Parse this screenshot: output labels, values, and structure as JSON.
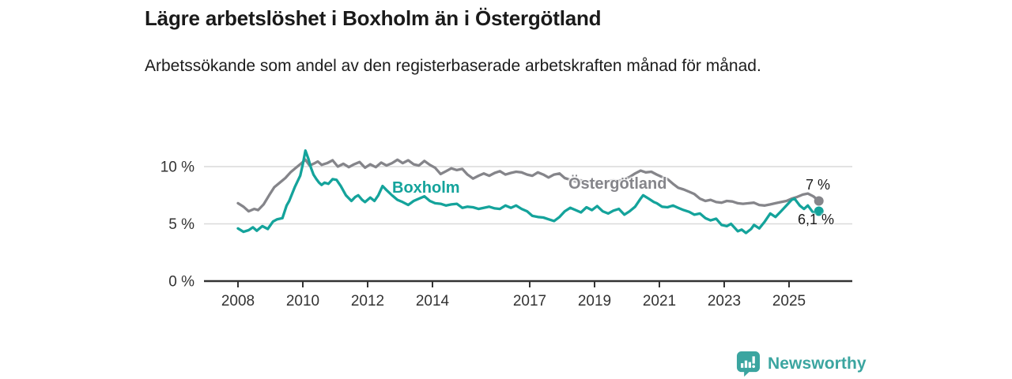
{
  "header": {
    "title": "Lägre arbetslöshet i Boxholm än i Östergötland",
    "subtitle": "Arbetssökande som andel av den registerbaserade arbetskraften månad för månad."
  },
  "footer": {
    "brand": "Newsworthy"
  },
  "colors": {
    "boxholm": "#14A39B",
    "ostergotland": "#85858A",
    "logo_teal": "#3BA5A0",
    "axis": "#333333",
    "grid": "#DADADA",
    "label_text": "#1A1A1A"
  },
  "chart_data": {
    "type": "line",
    "title": "Lägre arbetslöshet i Boxholm än i Östergötland",
    "subtitle": "Arbetssökande som andel av den registerbaserade arbetskraften månad för månad.",
    "unit": "%",
    "xlabel": "",
    "ylabel": "",
    "x_range": [
      2008,
      2025.92
    ],
    "ylim": [
      0,
      11.8
    ],
    "grid": "horizontal-only",
    "legend_position": "inline-labels",
    "x_ticks": [
      2008,
      2010,
      2012,
      2014,
      2017,
      2019,
      2021,
      2023,
      2025
    ],
    "y_ticks": [
      {
        "value": 0,
        "label": "0 %"
      },
      {
        "value": 5,
        "label": "5 %"
      },
      {
        "value": 10,
        "label": "10 %"
      }
    ],
    "series": [
      {
        "name": "Östergötland",
        "color": "#85858A",
        "end_label": "7 %",
        "end_value": 7.0,
        "points": [
          [
            2008.0,
            6.8
          ],
          [
            2008.17,
            6.5
          ],
          [
            2008.33,
            6.1
          ],
          [
            2008.5,
            6.3
          ],
          [
            2008.62,
            6.2
          ],
          [
            2008.79,
            6.7
          ],
          [
            2008.96,
            7.5
          ],
          [
            2009.12,
            8.2
          ],
          [
            2009.29,
            8.6
          ],
          [
            2009.46,
            9.0
          ],
          [
            2009.62,
            9.5
          ],
          [
            2009.79,
            9.9
          ],
          [
            2009.96,
            10.3
          ],
          [
            2010.08,
            10.6
          ],
          [
            2010.21,
            10.1
          ],
          [
            2010.37,
            10.3
          ],
          [
            2010.46,
            10.45
          ],
          [
            2010.58,
            10.15
          ],
          [
            2010.75,
            10.3
          ],
          [
            2010.92,
            10.55
          ],
          [
            2011.08,
            10.0
          ],
          [
            2011.25,
            10.25
          ],
          [
            2011.42,
            9.95
          ],
          [
            2011.58,
            10.2
          ],
          [
            2011.75,
            10.4
          ],
          [
            2011.92,
            9.9
          ],
          [
            2012.08,
            10.2
          ],
          [
            2012.25,
            9.95
          ],
          [
            2012.42,
            10.35
          ],
          [
            2012.58,
            10.1
          ],
          [
            2012.75,
            10.3
          ],
          [
            2012.92,
            10.6
          ],
          [
            2013.08,
            10.3
          ],
          [
            2013.25,
            10.55
          ],
          [
            2013.42,
            10.2
          ],
          [
            2013.58,
            10.1
          ],
          [
            2013.75,
            10.5
          ],
          [
            2013.92,
            10.15
          ],
          [
            2014.08,
            9.9
          ],
          [
            2014.25,
            9.35
          ],
          [
            2014.42,
            9.6
          ],
          [
            2014.58,
            9.85
          ],
          [
            2014.75,
            9.7
          ],
          [
            2014.92,
            9.8
          ],
          [
            2015.08,
            9.3
          ],
          [
            2015.25,
            8.95
          ],
          [
            2015.42,
            9.2
          ],
          [
            2015.58,
            9.4
          ],
          [
            2015.75,
            9.2
          ],
          [
            2015.92,
            9.45
          ],
          [
            2016.08,
            9.6
          ],
          [
            2016.25,
            9.3
          ],
          [
            2016.42,
            9.45
          ],
          [
            2016.58,
            9.55
          ],
          [
            2016.75,
            9.5
          ],
          [
            2016.92,
            9.3
          ],
          [
            2017.08,
            9.2
          ],
          [
            2017.25,
            9.5
          ],
          [
            2017.42,
            9.3
          ],
          [
            2017.58,
            9.05
          ],
          [
            2017.75,
            9.3
          ],
          [
            2017.92,
            9.4
          ],
          [
            2018.08,
            9.0
          ],
          [
            2018.25,
            8.85
          ],
          [
            2018.42,
            8.7
          ],
          [
            2018.58,
            8.8
          ],
          [
            2018.75,
            8.65
          ],
          [
            2018.92,
            8.75
          ],
          [
            2019.08,
            8.7
          ],
          [
            2019.25,
            8.6
          ],
          [
            2019.42,
            8.7
          ],
          [
            2019.58,
            8.8
          ],
          [
            2019.75,
            8.75
          ],
          [
            2019.92,
            8.9
          ],
          [
            2020.08,
            9.1
          ],
          [
            2020.25,
            9.4
          ],
          [
            2020.42,
            9.65
          ],
          [
            2020.58,
            9.5
          ],
          [
            2020.75,
            9.55
          ],
          [
            2020.92,
            9.3
          ],
          [
            2021.08,
            9.1
          ],
          [
            2021.25,
            8.9
          ],
          [
            2021.42,
            8.5
          ],
          [
            2021.58,
            8.15
          ],
          [
            2021.75,
            8.0
          ],
          [
            2021.92,
            7.8
          ],
          [
            2022.08,
            7.6
          ],
          [
            2022.25,
            7.2
          ],
          [
            2022.42,
            7.0
          ],
          [
            2022.58,
            7.1
          ],
          [
            2022.75,
            6.9
          ],
          [
            2022.92,
            6.85
          ],
          [
            2023.08,
            7.0
          ],
          [
            2023.25,
            6.95
          ],
          [
            2023.42,
            6.8
          ],
          [
            2023.58,
            6.75
          ],
          [
            2023.75,
            6.8
          ],
          [
            2023.92,
            6.85
          ],
          [
            2024.08,
            6.65
          ],
          [
            2024.25,
            6.6
          ],
          [
            2024.42,
            6.7
          ],
          [
            2024.58,
            6.8
          ],
          [
            2024.75,
            6.9
          ],
          [
            2024.92,
            7.0
          ],
          [
            2025.08,
            7.2
          ],
          [
            2025.25,
            7.35
          ],
          [
            2025.42,
            7.55
          ],
          [
            2025.58,
            7.65
          ],
          [
            2025.75,
            7.4
          ],
          [
            2025.92,
            7.0
          ]
        ]
      },
      {
        "name": "Boxholm",
        "color": "#14A39B",
        "end_label": "6,1 %",
        "end_value": 6.1,
        "points": [
          [
            2008.0,
            4.6
          ],
          [
            2008.17,
            4.3
          ],
          [
            2008.33,
            4.45
          ],
          [
            2008.46,
            4.7
          ],
          [
            2008.58,
            4.4
          ],
          [
            2008.75,
            4.8
          ],
          [
            2008.92,
            4.55
          ],
          [
            2009.08,
            5.2
          ],
          [
            2009.21,
            5.4
          ],
          [
            2009.37,
            5.5
          ],
          [
            2009.5,
            6.6
          ],
          [
            2009.58,
            7.0
          ],
          [
            2009.75,
            8.2
          ],
          [
            2009.92,
            9.2
          ],
          [
            2010.0,
            10.2
          ],
          [
            2010.08,
            11.4
          ],
          [
            2010.17,
            10.7
          ],
          [
            2010.25,
            9.9
          ],
          [
            2010.33,
            9.3
          ],
          [
            2010.42,
            8.9
          ],
          [
            2010.5,
            8.6
          ],
          [
            2010.58,
            8.4
          ],
          [
            2010.67,
            8.6
          ],
          [
            2010.79,
            8.5
          ],
          [
            2010.92,
            8.9
          ],
          [
            2011.04,
            8.85
          ],
          [
            2011.17,
            8.3
          ],
          [
            2011.33,
            7.5
          ],
          [
            2011.5,
            7.0
          ],
          [
            2011.62,
            7.35
          ],
          [
            2011.71,
            7.5
          ],
          [
            2011.83,
            7.1
          ],
          [
            2011.92,
            6.9
          ],
          [
            2012.08,
            7.3
          ],
          [
            2012.21,
            7.0
          ],
          [
            2012.33,
            7.5
          ],
          [
            2012.46,
            8.3
          ],
          [
            2012.58,
            7.95
          ],
          [
            2012.75,
            7.5
          ],
          [
            2012.92,
            7.1
          ],
          [
            2013.08,
            6.9
          ],
          [
            2013.25,
            6.65
          ],
          [
            2013.42,
            7.0
          ],
          [
            2013.58,
            7.2
          ],
          [
            2013.75,
            7.4
          ],
          [
            2013.92,
            7.0
          ],
          [
            2014.08,
            6.8
          ],
          [
            2014.25,
            6.75
          ],
          [
            2014.42,
            6.6
          ],
          [
            2014.58,
            6.7
          ],
          [
            2014.75,
            6.75
          ],
          [
            2014.92,
            6.4
          ],
          [
            2015.08,
            6.5
          ],
          [
            2015.25,
            6.45
          ],
          [
            2015.42,
            6.3
          ],
          [
            2015.58,
            6.4
          ],
          [
            2015.75,
            6.5
          ],
          [
            2015.92,
            6.35
          ],
          [
            2016.08,
            6.3
          ],
          [
            2016.25,
            6.6
          ],
          [
            2016.42,
            6.4
          ],
          [
            2016.58,
            6.6
          ],
          [
            2016.75,
            6.3
          ],
          [
            2016.92,
            6.1
          ],
          [
            2017.08,
            5.7
          ],
          [
            2017.25,
            5.6
          ],
          [
            2017.42,
            5.55
          ],
          [
            2017.58,
            5.4
          ],
          [
            2017.75,
            5.25
          ],
          [
            2017.92,
            5.6
          ],
          [
            2018.08,
            6.1
          ],
          [
            2018.25,
            6.4
          ],
          [
            2018.42,
            6.2
          ],
          [
            2018.58,
            6.0
          ],
          [
            2018.75,
            6.45
          ],
          [
            2018.92,
            6.2
          ],
          [
            2019.08,
            6.55
          ],
          [
            2019.25,
            6.1
          ],
          [
            2019.42,
            5.9
          ],
          [
            2019.58,
            6.15
          ],
          [
            2019.75,
            6.3
          ],
          [
            2019.92,
            5.8
          ],
          [
            2020.08,
            6.1
          ],
          [
            2020.25,
            6.5
          ],
          [
            2020.42,
            7.2
          ],
          [
            2020.5,
            7.5
          ],
          [
            2020.67,
            7.2
          ],
          [
            2020.83,
            6.9
          ],
          [
            2020.92,
            6.8
          ],
          [
            2021.08,
            6.5
          ],
          [
            2021.25,
            6.45
          ],
          [
            2021.42,
            6.6
          ],
          [
            2021.58,
            6.4
          ],
          [
            2021.75,
            6.2
          ],
          [
            2021.92,
            6.05
          ],
          [
            2022.08,
            5.8
          ],
          [
            2022.25,
            5.9
          ],
          [
            2022.42,
            5.5
          ],
          [
            2022.58,
            5.3
          ],
          [
            2022.75,
            5.45
          ],
          [
            2022.92,
            4.9
          ],
          [
            2023.08,
            4.8
          ],
          [
            2023.21,
            5.0
          ],
          [
            2023.42,
            4.35
          ],
          [
            2023.54,
            4.5
          ],
          [
            2023.67,
            4.2
          ],
          [
            2023.83,
            4.55
          ],
          [
            2023.92,
            4.9
          ],
          [
            2024.08,
            4.6
          ],
          [
            2024.25,
            5.2
          ],
          [
            2024.42,
            5.9
          ],
          [
            2024.58,
            5.6
          ],
          [
            2024.75,
            6.1
          ],
          [
            2024.92,
            6.6
          ],
          [
            2025.08,
            7.1
          ],
          [
            2025.17,
            7.2
          ],
          [
            2025.33,
            6.6
          ],
          [
            2025.46,
            6.3
          ],
          [
            2025.58,
            6.6
          ],
          [
            2025.75,
            5.95
          ],
          [
            2025.92,
            6.1
          ]
        ]
      }
    ]
  }
}
